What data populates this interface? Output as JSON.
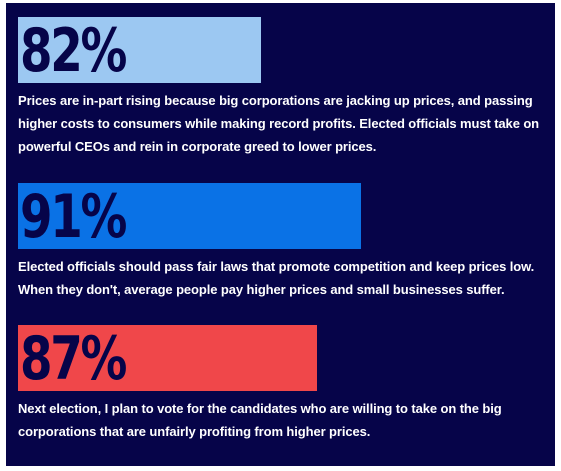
{
  "chart_data": {
    "type": "bar",
    "colors": [
      "#9cc8f2",
      "#0a72e6",
      "#f0474a"
    ],
    "items": [
      {
        "value": 82,
        "label": "82%",
        "text": "Prices are in-part rising because big corporations are jacking up prices, and passing higher costs to consumers while making record profits. Elected officials must take on powerful CEOs and rein in corporate greed to lower prices."
      },
      {
        "value": 91,
        "label": "91%",
        "text": "Elected officials should pass fair laws that promote competition and keep prices low. When they don't, average people pay higher prices and small businesses suffer."
      },
      {
        "value": 87,
        "label": "87%",
        "text": "Next election, I plan to vote for the candidates who are willing to take on the big corporations that are unfairly profiting from higher prices."
      }
    ]
  }
}
